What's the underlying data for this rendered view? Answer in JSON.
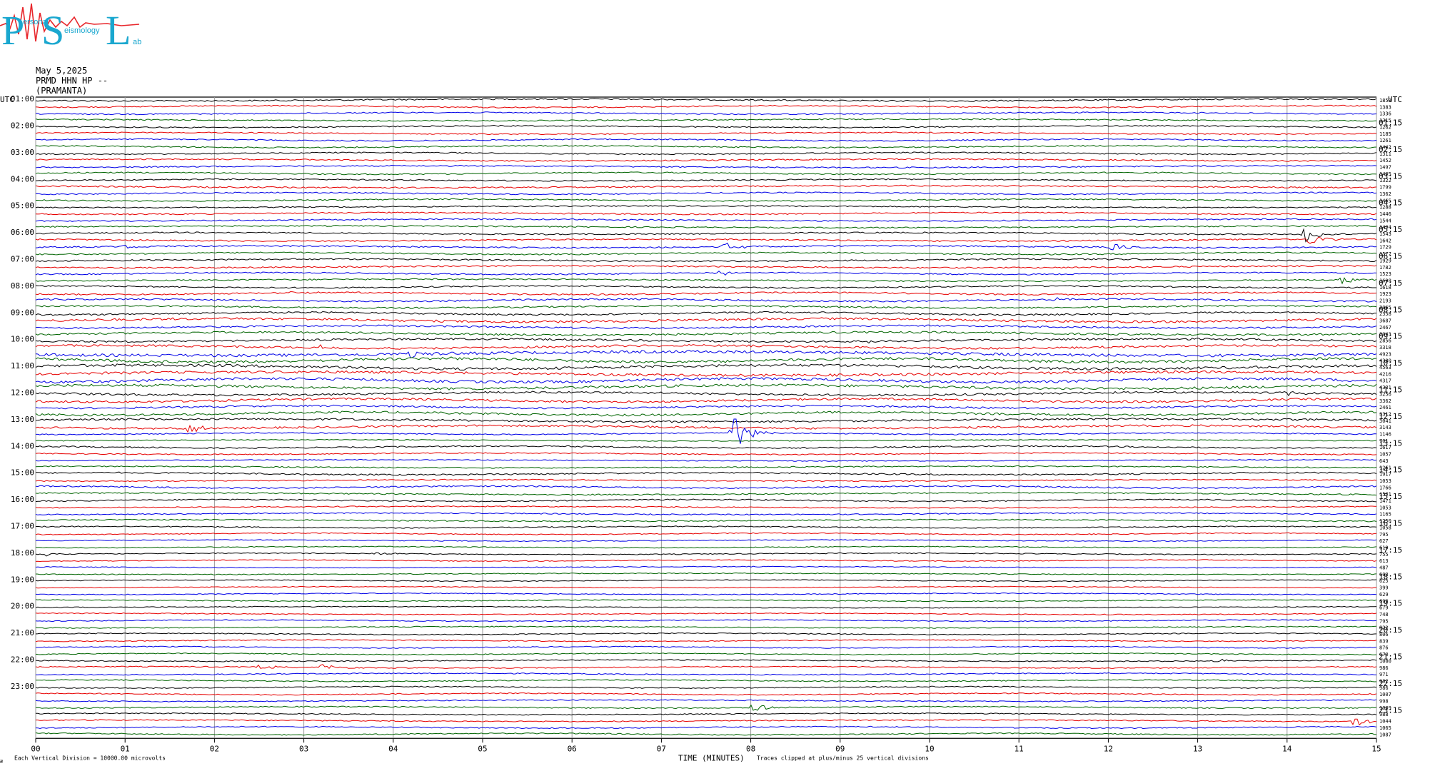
{
  "logo": {
    "big_letters": [
      "P",
      "S",
      "L"
    ],
    "small_text": [
      "ersonal",
      "eismology",
      "ab"
    ]
  },
  "header": {
    "date": "May 5,2025",
    "station": "PRMD HHN HP --",
    "site": "(PRAMANTA)"
  },
  "axis_labels": {
    "left_utc": "UTC",
    "right_utc": "UTC",
    "xlabel": "TIME (MINUTES)"
  },
  "notes": {
    "division": "Each Vertical Division = 10000.00 microvolts",
    "clip": "Traces clipped at plus/minus 25 vertical divisions",
    "corner": "æ"
  },
  "colors": {
    "trace_cycle": [
      "#000000",
      "#e60000",
      "#0000e6",
      "#006400"
    ],
    "grid": "#9a9a9a",
    "logo_red": "#e8262b",
    "logo_cyan": "#1aa7cf"
  },
  "chart_data": {
    "type": "line",
    "title": "",
    "xlabel": "TIME (MINUTES)",
    "xlim": [
      0,
      15
    ],
    "x_ticks": [
      "00",
      "01",
      "02",
      "03",
      "04",
      "05",
      "06",
      "07",
      "08",
      "09",
      "10",
      "11",
      "12",
      "13",
      "14",
      "15"
    ],
    "rows_per_hour": 4,
    "left_hour_labels": [
      "01:00",
      "02:00",
      "03:00",
      "04:00",
      "05:00",
      "06:00",
      "07:00",
      "08:00",
      "09:00",
      "10:00",
      "11:00",
      "12:00",
      "13:00",
      "14:00",
      "15:00",
      "16:00",
      "17:00",
      "18:00",
      "19:00",
      "20:00",
      "21:00",
      "22:00",
      "23:00"
    ],
    "right_hour_labels": [
      "01:15",
      "02:15",
      "03:15",
      "04:15",
      "05:15",
      "06:15",
      "07:15",
      "08:15",
      "09:15",
      "10:15",
      "11:15",
      "12:15",
      "13:15",
      "14:15",
      "15:15",
      "16:15",
      "17:15",
      "18:15",
      "19:15",
      "20:15",
      "21:15",
      "22:15",
      "23:15"
    ],
    "row_values": [
      "1858",
      "1383",
      "1336",
      "1315",
      "1262",
      "1185",
      "1261",
      "1442",
      "1311",
      "1452",
      "1497",
      "1405",
      "1322",
      "1799",
      "1362",
      "1465",
      "1288",
      "1446",
      "1544",
      "1494",
      "1543",
      "1642",
      "1729",
      "1577",
      "1929",
      "1782",
      "1523",
      "1698",
      "1618",
      "1923",
      "2193",
      "2065",
      "2358",
      "3687",
      "2467",
      "2943",
      "2856",
      "3318",
      "4923",
      "4380",
      "4563",
      "4216",
      "4317",
      "4331",
      "3256",
      "3362",
      "2461",
      "3312",
      "3041",
      "3143",
      "1146",
      "701",
      "1617",
      "1057",
      "643",
      "1261",
      "1917",
      "1053",
      "1766",
      "1581",
      "1471",
      "1053",
      "1165",
      "1250",
      "1058",
      "795",
      "627",
      "619",
      "755",
      "613",
      "487",
      "603",
      "625",
      "399",
      "629",
      "698",
      "679",
      "748",
      "795",
      "822",
      "806",
      "839",
      "876",
      "670",
      "1000",
      "986",
      "971",
      "982",
      "986",
      "1007",
      "998",
      "1089",
      "988",
      "1044",
      "1065",
      "1087"
    ],
    "events": [
      {
        "row": 20,
        "minute": 14.2,
        "size": 12
      },
      {
        "row": 21,
        "minute": 14.25,
        "size": 9
      },
      {
        "row": 22,
        "minute": 7.7,
        "size": 6
      },
      {
        "row": 22,
        "minute": 12.05,
        "size": 14
      },
      {
        "row": 22,
        "minute": 1.0,
        "size": 3
      },
      {
        "row": 26,
        "minute": 7.6,
        "size": 6
      },
      {
        "row": 27,
        "minute": 14.6,
        "size": 6
      },
      {
        "row": 29,
        "minute": 2.75,
        "size": 5
      },
      {
        "row": 30,
        "minute": 11.4,
        "size": 4
      },
      {
        "row": 36,
        "minute": 9.3,
        "size": 3
      },
      {
        "row": 37,
        "minute": 3.2,
        "size": 4
      },
      {
        "row": 38,
        "minute": 4.2,
        "size": 5
      },
      {
        "row": 39,
        "minute": 4.5,
        "size": 3
      },
      {
        "row": 44,
        "minute": 14.0,
        "size": 5
      },
      {
        "row": 44,
        "minute": 7.5,
        "size": 3
      },
      {
        "row": 49,
        "minute": 1.7,
        "size": 7
      },
      {
        "row": 50,
        "minute": 7.8,
        "size": 28
      },
      {
        "row": 68,
        "minute": 0.1,
        "size": 3
      },
      {
        "row": 68,
        "minute": 3.8,
        "size": 3
      },
      {
        "row": 85,
        "minute": 3.2,
        "size": 7
      },
      {
        "row": 85,
        "minute": 2.5,
        "size": 4
      },
      {
        "row": 91,
        "minute": 8.0,
        "size": 10
      },
      {
        "row": 93,
        "minute": 14.75,
        "size": 7
      },
      {
        "row": 84,
        "minute": 13.2,
        "size": 3
      }
    ]
  }
}
